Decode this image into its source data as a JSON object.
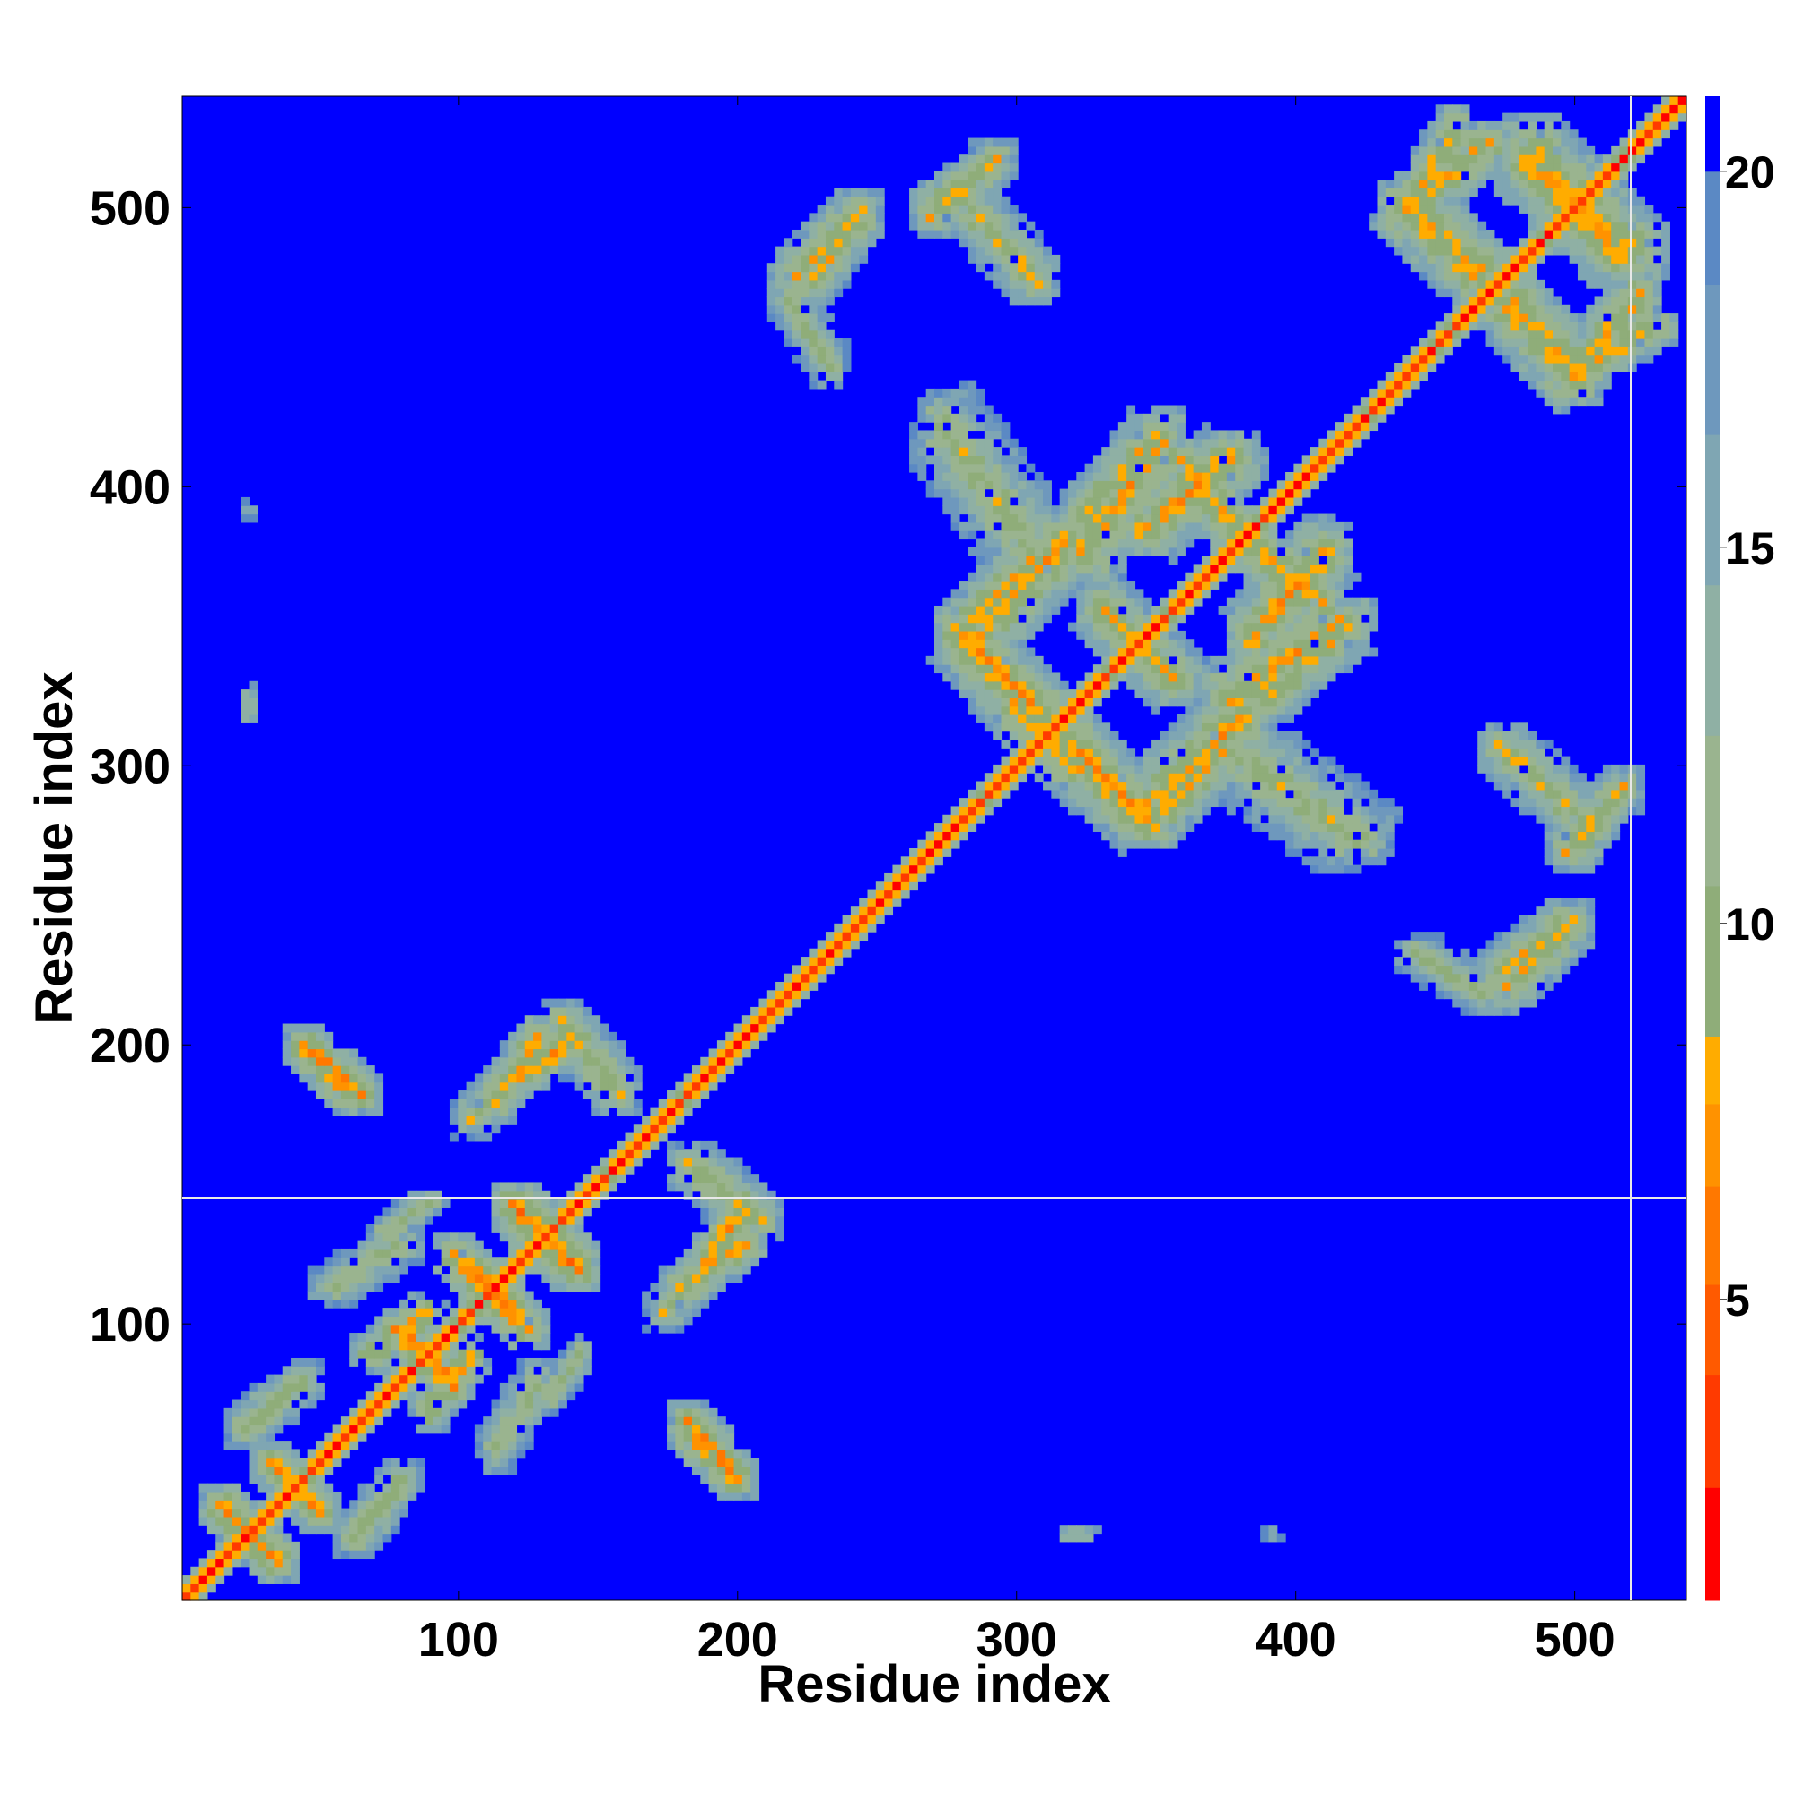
{
  "chart_data": {
    "type": "heatmap",
    "title": "",
    "xlabel": "Residue index",
    "ylabel": "Residue index",
    "xlim": [
      1,
      540
    ],
    "ylim": [
      1,
      540
    ],
    "xticks": [
      100,
      200,
      300,
      400,
      500
    ],
    "yticks": [
      100,
      200,
      300,
      400,
      500
    ],
    "colorbar": {
      "range": [
        1,
        21
      ],
      "ticks": [
        5,
        10,
        15,
        20
      ],
      "colors": [
        "#ff0000",
        "#ff3a00",
        "#ff5a00",
        "#ff7800",
        "#ff9200",
        "#ffac00",
        "#8fad79",
        "#9ab48f",
        "#8fb0a4",
        "#7fa6b3",
        "#6e98bd",
        "#5b89c4",
        "#0000ff"
      ],
      "boundaries": [
        1,
        2.5,
        4,
        5.2,
        6.5,
        7.6,
        8.5,
        10.5,
        12.5,
        14.5,
        16.5,
        18.5,
        20,
        21
      ]
    },
    "background_value": 21,
    "value_meaning": "distance",
    "structure": {
      "diagonal": {
        "from": 1,
        "to": 540,
        "core_value": 2,
        "band_width": 7
      },
      "contacts": [
        {
          "x": [
            10,
            35
          ],
          "y": [
            10,
            35
          ],
          "orientation": "anti",
          "v": 6
        },
        {
          "x": [
            30,
            50
          ],
          "y": [
            30,
            50
          ],
          "orientation": "anti",
          "v": 6
        },
        {
          "x": [
            20,
            45
          ],
          "y": [
            60,
            80
          ],
          "orientation": "par",
          "v": 7
        },
        {
          "x": [
            40,
            60
          ],
          "y": [
            180,
            200
          ],
          "orientation": "anti",
          "v": 6
        },
        {
          "x": [
            50,
            80
          ],
          "y": [
            110,
            130
          ],
          "orientation": "par",
          "v": 8
        },
        {
          "x": [
            70,
            90
          ],
          "y": [
            130,
            145
          ],
          "orientation": "par",
          "v": 8
        },
        {
          "x": [
            75,
            95
          ],
          "y": [
            80,
            100
          ],
          "orientation": "anti",
          "v": 5
        },
        {
          "x": [
            85,
            105
          ],
          "y": [
            65,
            90
          ],
          "orientation": "par",
          "v": 6
        },
        {
          "x": [
            100,
            125
          ],
          "y": [
            95,
            120
          ],
          "orientation": "anti",
          "v": 5
        },
        {
          "x": [
            115,
            145
          ],
          "y": [
            115,
            145
          ],
          "orientation": "anti",
          "v": 5
        },
        {
          "x": [
            110,
            130
          ],
          "y": [
            175,
            205
          ],
          "orientation": "par",
          "v": 6
        },
        {
          "x": [
            135,
            160
          ],
          "y": [
            180,
            210
          ],
          "orientation": "anti",
          "v": 7
        },
        {
          "x": [
            180,
            200
          ],
          "y": [
            40,
            65
          ],
          "orientation": "anti",
          "v": 5
        },
        {
          "x": [
            185,
            205
          ],
          "y": [
            120,
            145
          ],
          "orientation": "par",
          "v": 6
        },
        {
          "x": [
            170,
            195
          ],
          "y": [
            100,
            125
          ],
          "orientation": "par",
          "v": 8
        },
        {
          "x": [
            130,
            145
          ],
          "y": [
            70,
            90
          ],
          "orientation": "par",
          "v": 8
        },
        {
          "x": [
            225,
            245
          ],
          "y": [
            470,
            500
          ],
          "orientation": "par",
          "v": 7
        },
        {
          "x": [
            265,
            290
          ],
          "y": [
            500,
            515
          ],
          "orientation": "par",
          "v": 7
        },
        {
          "x": [
            285,
            305
          ],
          "y": [
            475,
            495
          ],
          "orientation": "anti",
          "v": 8
        },
        {
          "x": [
            275,
            310
          ],
          "y": [
            310,
            350
          ],
          "orientation": "anti",
          "v": 6
        },
        {
          "x": [
            280,
            305
          ],
          "y": [
            350,
            375
          ],
          "orientation": "par",
          "v": 6
        },
        {
          "x": [
            310,
            345
          ],
          "y": [
            280,
            315
          ],
          "orientation": "anti",
          "v": 6
        },
        {
          "x": [
            320,
            355
          ],
          "y": [
            370,
            420
          ],
          "orientation": "par",
          "v": 6
        },
        {
          "x": [
            345,
            385
          ],
          "y": [
            280,
            320
          ],
          "orientation": "par",
          "v": 6
        },
        {
          "x": [
            325,
            360
          ],
          "y": [
            325,
            360
          ],
          "orientation": "anti",
          "v": 7
        },
        {
          "x": [
            355,
            380
          ],
          "y": [
            380,
            410
          ],
          "orientation": "anti",
          "v": 6
        },
        {
          "x": [
            380,
            415
          ],
          "y": [
            340,
            380
          ],
          "orientation": "par",
          "v": 6
        },
        {
          "x": [
            385,
            415
          ],
          "y": [
            320,
            345
          ],
          "orientation": "par",
          "v": 7
        },
        {
          "x": [
            370,
            425
          ],
          "y": [
            270,
            310
          ],
          "orientation": "anti",
          "v": 8
        },
        {
          "x": [
            440,
            475
          ],
          "y": [
            470,
            500
          ],
          "orientation": "anti",
          "v": 6
        },
        {
          "x": [
            440,
            470
          ],
          "y": [
            500,
            525
          ],
          "orientation": "par",
          "v": 6
        },
        {
          "x": [
            470,
            505
          ],
          "y": [
            435,
            470
          ],
          "orientation": "anti",
          "v": 6
        },
        {
          "x": [
            500,
            530
          ],
          "y": [
            440,
            460
          ],
          "orientation": "par",
          "v": 6
        },
        {
          "x": [
            480,
            520
          ],
          "y": [
            480,
            525
          ],
          "orientation": "anti",
          "v": 6
        },
        {
          "x": [
            470,
            500
          ],
          "y": [
            280,
            310
          ],
          "orientation": "anti",
          "v": 7
        },
        {
          "x": [
            495,
            520
          ],
          "y": [
            265,
            295
          ],
          "orientation": "par",
          "v": 7
        },
        {
          "x": [
            470,
            500
          ],
          "y": [
            215,
            245
          ],
          "orientation": "par",
          "v": 7
        },
        {
          "x": [
            440,
            470
          ],
          "y": [
            215,
            235
          ],
          "orientation": "anti",
          "v": 8
        },
        {
          "x": [
            315,
            325
          ],
          "y": [
            20,
            28
          ],
          "orientation": "blob",
          "v": 7
        },
        {
          "x": [
            20,
            28
          ],
          "y": [
            318,
            330
          ],
          "orientation": "blob",
          "v": 8
        },
        {
          "x": [
            20,
            28
          ],
          "y": [
            385,
            395
          ],
          "orientation": "blob",
          "v": 12
        }
      ]
    }
  }
}
